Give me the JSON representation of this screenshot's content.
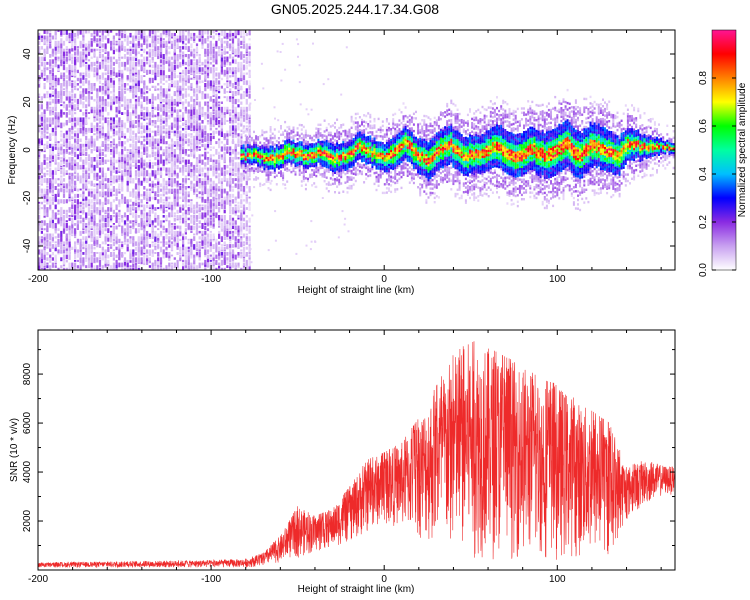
{
  "figure_title": "GN05.2025.244.17.34.G08",
  "chart_data": [
    {
      "id": "spectrogram",
      "type": "heatmap",
      "title": "GN05.2025.244.17.34.G08",
      "xlabel": "Height of straight line (km)",
      "ylabel": "Frequency (Hz)",
      "xlim": [
        -200,
        168
      ],
      "ylim": [
        -50,
        50
      ],
      "xticks": [
        -200,
        -100,
        0,
        100
      ],
      "yticks": [
        -40,
        -20,
        0,
        20,
        40
      ],
      "noise_region_x": [
        -200,
        -80
      ],
      "signal_start_x": -83,
      "ridge": {
        "x": [
          -83,
          -75,
          -65,
          -55,
          -45,
          -38,
          -30,
          -20,
          -15,
          -8,
          0,
          5,
          12,
          18,
          25,
          30,
          38,
          45,
          55,
          65,
          75,
          85,
          95,
          105,
          112,
          120,
          128,
          135,
          140,
          150,
          160,
          168
        ],
        "freq": [
          -3,
          -2,
          -4,
          -1,
          -3,
          -1,
          -4,
          -2,
          2,
          -1,
          -3,
          -1,
          3,
          -2,
          -5,
          -1,
          2,
          -3,
          -2,
          2,
          -3,
          0,
          -3,
          3,
          -3,
          2,
          0,
          -3,
          2,
          1,
          1,
          1
        ],
        "width": [
          4,
          4,
          5,
          5,
          5,
          5,
          6,
          6,
          6,
          6,
          6,
          7,
          7,
          7,
          8,
          8,
          8,
          8,
          8,
          9,
          9,
          9,
          10,
          10,
          10,
          9,
          9,
          8,
          7,
          5,
          3,
          2
        ]
      },
      "colorbar": {
        "label": "Normalized spectral amplitude",
        "range": [
          0,
          1
        ],
        "ticks": [
          0.0,
          0.2,
          0.4,
          0.6,
          0.8
        ],
        "tick_labels": [
          "0.0",
          "0.2",
          "0.4",
          "0.6",
          "0.8"
        ],
        "stops": [
          "#ffffff",
          "#c8a0f0",
          "#8a2be2",
          "#0000ff",
          "#00bfff",
          "#00ffa0",
          "#00ff00",
          "#ffff00",
          "#ff8000",
          "#ff0000",
          "#ff1493"
        ]
      }
    },
    {
      "id": "snr",
      "type": "line",
      "title": "",
      "xlabel": "Height of straight line (km)",
      "ylabel": "SNR (10 * v/v)",
      "xlim": [
        -200,
        168
      ],
      "ylim": [
        0,
        9800
      ],
      "xticks": [
        -200,
        -100,
        0,
        100
      ],
      "yticks": [
        2000,
        4000,
        6000,
        8000
      ],
      "line_color": "#ee2a2a",
      "envelope": {
        "x": [
          -200,
          -150,
          -100,
          -80,
          -70,
          -60,
          -50,
          -40,
          -30,
          -20,
          -10,
          0,
          10,
          20,
          30,
          40,
          50,
          60,
          70,
          80,
          90,
          100,
          110,
          120,
          130,
          140,
          150,
          160,
          168
        ],
        "low": [
          100,
          100,
          100,
          100,
          150,
          300,
          500,
          700,
          900,
          1100,
          1500,
          1900,
          1700,
          1300,
          900,
          600,
          500,
          400,
          400,
          500,
          400,
          400,
          500,
          500,
          500,
          2000,
          2600,
          3000,
          3100
        ],
        "high": [
          300,
          350,
          400,
          450,
          700,
          1400,
          2600,
          2200,
          2500,
          3400,
          4500,
          4800,
          5200,
          6200,
          7500,
          8800,
          9400,
          9100,
          8700,
          8400,
          7800,
          7600,
          7000,
          6500,
          6000,
          4200,
          4500,
          4300,
          4200
        ]
      }
    }
  ]
}
